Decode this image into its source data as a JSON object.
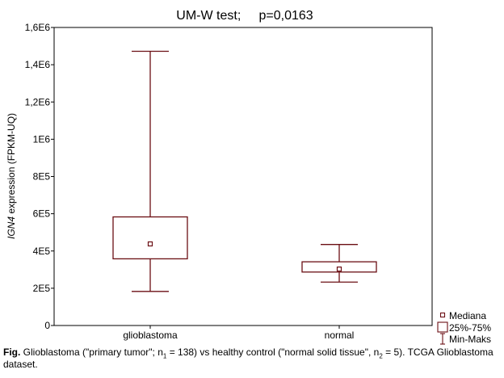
{
  "chart_data": {
    "type": "boxplot",
    "title": "UM-W test;     p=0,0163",
    "ylabel_italic": "IGN4",
    "ylabel_rest": " expression (FPKM-UQ)",
    "ylim": [
      0,
      1600000
    ],
    "yticks": [
      {
        "value": 0,
        "label": "0"
      },
      {
        "value": 200000,
        "label": "2E5"
      },
      {
        "value": 400000,
        "label": "4E5"
      },
      {
        "value": 600000,
        "label": "6E5"
      },
      {
        "value": 800000,
        "label": "8E5"
      },
      {
        "value": 1000000,
        "label": "1E6"
      },
      {
        "value": 1200000,
        "label": "1,2E6"
      },
      {
        "value": 1400000,
        "label": "1,4E6"
      },
      {
        "value": 1600000,
        "label": "1,6E6"
      }
    ],
    "categories": [
      "glioblastoma",
      "normal"
    ],
    "boxes": [
      {
        "category": "glioblastoma",
        "min": 183000,
        "q1": 358000,
        "median": 438000,
        "q3": 583000,
        "max": 1472000
      },
      {
        "category": "normal",
        "min": 233000,
        "q1": 287000,
        "median": 303000,
        "q3": 342000,
        "max": 435000
      }
    ],
    "legend": {
      "position": "bottom-right",
      "items": [
        "Mediana",
        "25%-75%",
        "Min-Maks"
      ]
    },
    "color": "#6b0f14",
    "grid": false
  },
  "caption": {
    "fig_label": "Fig.",
    "text_a": " Glioblastoma (\"primary tumor\"; n",
    "sub1": "1",
    "text_b": " = 138)  vs healthy control (\"normal solid tissue\", n",
    "sub2": "2",
    "text_c": " = 5). TCGA Glioblastoma dataset."
  }
}
